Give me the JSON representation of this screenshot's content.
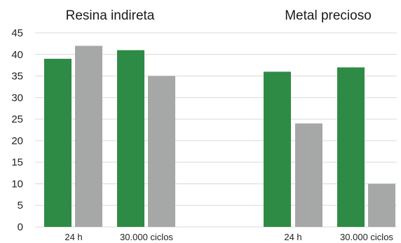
{
  "chart_data": {
    "type": "bar",
    "ylim": [
      0,
      45
    ],
    "yticks": [
      0,
      5,
      10,
      15,
      20,
      25,
      30,
      35,
      40,
      45
    ],
    "grid": true,
    "colors": {
      "green": "#2e8b45",
      "gray": "#a6a8a8"
    },
    "groups": [
      {
        "title": "Resina indireta",
        "categories": [
          "24 h",
          "30.000 ciclos"
        ],
        "series": [
          {
            "values": [
              39,
              41
            ]
          },
          {
            "values": [
              42,
              35
            ]
          }
        ]
      },
      {
        "title": "Metal precioso",
        "categories": [
          "24 h",
          "30.000 ciclos"
        ],
        "series": [
          {
            "values": [
              36,
              37
            ]
          },
          {
            "values": [
              24,
              10
            ]
          }
        ]
      }
    ]
  }
}
